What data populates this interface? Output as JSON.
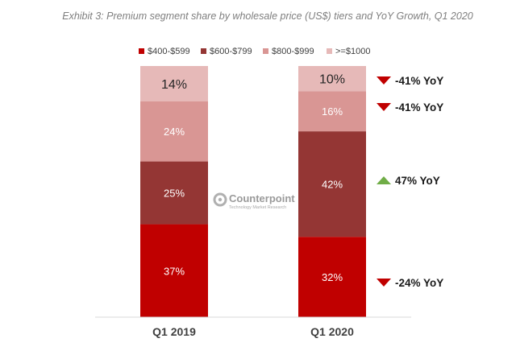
{
  "chart_data": {
    "type": "stacked-bar",
    "title": "Exhibit 3: Premium segment share by wholesale price (US$) tiers and YoY Growth, Q1 2020",
    "categories": [
      "Q1 2019",
      "Q1 2020"
    ],
    "series": [
      {
        "name": "$400-$599",
        "color": "#c00000",
        "values": [
          37,
          32
        ],
        "labels": [
          "37%",
          "32%"
        ]
      },
      {
        "name": "$600-$799",
        "color": "#943634",
        "values": [
          25,
          42
        ],
        "labels": [
          "25%",
          "42%"
        ]
      },
      {
        "name": "$800-$999",
        "color": "#d99694",
        "values": [
          24,
          16
        ],
        "labels": [
          "24%",
          "16%"
        ]
      },
      {
        "name": ">=$1000",
        "color": "#e6b9b8",
        "values": [
          14,
          10
        ],
        "labels": [
          "14%",
          "10%"
        ]
      }
    ],
    "yoy_annotations": [
      {
        "series": ">=$1000",
        "text": "-41% YoY",
        "direction": "down"
      },
      {
        "series": "$800-$999",
        "text": "-41% YoY",
        "direction": "down"
      },
      {
        "series": "$600-$799",
        "text": "47% YoY",
        "direction": "up"
      },
      {
        "series": "$400-$599",
        "text": "-24% YoY",
        "direction": "down"
      }
    ],
    "ylim": [
      0,
      100
    ]
  },
  "watermark": {
    "name": "Counterpoint",
    "subtitle": "Technology Market Research"
  },
  "colors": {
    "down_arrow": "#c00000",
    "up_arrow": "#70ad47"
  }
}
